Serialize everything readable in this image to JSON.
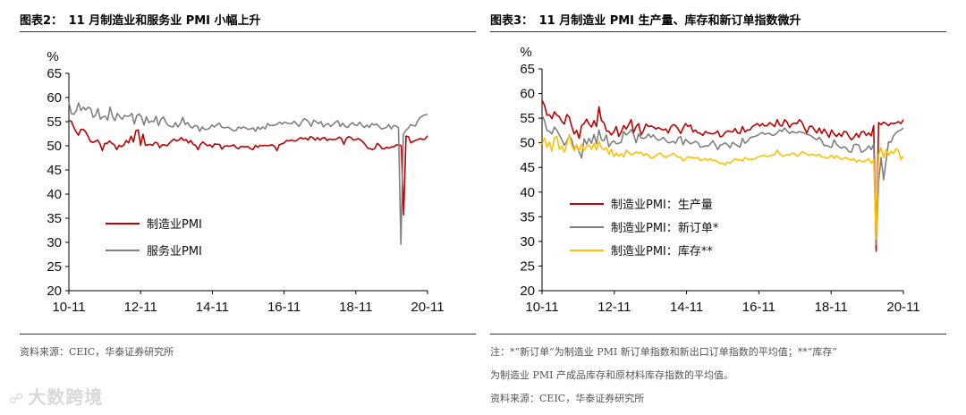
{
  "left": {
    "title_label": "图表2：",
    "title_text": "11 月制造业和服务业 PMI 小幅上升",
    "source": "资料来源：CEIC，华泰证券研究所"
  },
  "right": {
    "title_label": "图表3：",
    "title_text": "11 月制造业 PMI 生产量、库存和新订单指数微升",
    "note_line1": "注：*“新订单”为制造业 PMI 新订单指数和新出口订单指数的平均值；**“库存”",
    "note_line2": "为制造业 PMI 产成品库存和原材料库存指数的平均值。",
    "source": "资料来源：CEIC，华泰证券研究所"
  },
  "watermark": {
    "text": "大数跨境",
    "icon": "watermark-logo-icon"
  },
  "colors": {
    "red": "#c00000",
    "gray": "#808080",
    "yellow": "#ffc000",
    "rule": "#c00000"
  },
  "chart_data": [
    {
      "type": "line",
      "title": "11 月制造业和服务业 PMI 小幅上升",
      "ylabel": "%",
      "ylim": [
        20,
        65
      ],
      "yticks": [
        "20",
        "25",
        "30",
        "35",
        "40",
        "45",
        "50",
        "55",
        "60",
        "65"
      ],
      "xticks": [
        "10-11",
        "12-11",
        "14-11",
        "16-11",
        "18-11",
        "20-11"
      ],
      "x_start": "2010-11",
      "x_end": "2020-11",
      "series": [
        {
          "name": "制造业PMI",
          "color": "#c00000",
          "values": [
            55.2,
            55.1,
            53.9,
            52.9,
            52.2,
            53.4,
            53.4,
            52.9,
            52.0,
            50.9,
            50.7,
            50.9,
            51.2,
            50.4,
            49.0,
            50.5,
            50.5,
            51.0,
            50.5,
            50.2,
            49.2,
            50.1,
            49.8,
            50.2,
            51.1,
            50.6,
            52.0,
            50.8,
            53.1,
            53.3,
            50.1,
            52.4,
            50.1,
            50.2,
            50.3,
            50.1,
            50.7,
            50.6,
            49.6,
            50.2,
            50.2,
            50.0,
            50.5,
            51.0,
            51.4,
            51.0,
            51.2,
            51.7,
            51.1,
            51.3,
            50.6,
            51.1,
            50.3,
            50.1,
            49.2,
            50.3,
            50.8,
            50.4,
            50.0,
            50.2,
            49.7,
            50.4,
            50.3,
            50.3,
            49.3,
            49.9,
            50.0,
            49.9,
            50.0,
            50.2,
            49.6,
            49.4,
            49.9,
            49.8,
            49.8,
            49.8,
            49.4,
            49.2,
            50.1,
            49.7,
            50.1,
            50.0,
            50.1,
            50.0,
            50.1,
            50.2,
            49.9,
            49.0,
            50.2,
            50.4,
            50.6,
            51.1,
            51.0,
            51.2,
            51.0,
            51.0,
            51.4,
            51.7,
            51.4,
            51.6,
            51.2,
            51.9,
            51.7,
            51.2,
            51.7,
            51.2,
            51.6,
            51.7,
            51.1,
            51.4,
            51.3,
            51.3,
            51.4,
            51.8,
            51.5,
            50.3,
            51.5,
            51.9,
            51.7,
            51.2,
            51.3,
            51.5,
            51.2,
            50.8,
            50.2,
            49.5,
            49.4,
            49.2,
            49.5,
            50.5,
            50.1,
            49.4,
            49.4,
            49.7,
            49.5,
            49.8,
            49.8,
            50.2,
            50.2,
            50.0,
            35.7,
            52.0,
            51.9,
            50.6,
            50.9,
            51.1,
            51.3,
            51.5,
            51.3,
            51.4,
            52.1
          ]
        },
        {
          "name": "服务业PMI",
          "color": "#808080",
          "values": [
            59.1,
            56.7,
            56.5,
            57.2,
            58.9,
            57.3,
            58.0,
            57.4,
            58.0,
            57.7,
            55.9,
            56.3,
            57.7,
            55.5,
            56.0,
            56.1,
            55.3,
            58.0,
            56.1,
            55.2,
            56.7,
            56.0,
            55.5,
            56.3,
            56.1,
            56.2,
            56.7,
            54.5,
            56.2,
            56.6,
            55.9,
            54.3,
            56.0,
            54.8,
            55.1,
            55.0,
            56.1,
            54.2,
            55.5,
            56.0,
            54.9,
            54.2,
            54.0,
            53.9,
            54.8,
            53.9,
            54.6,
            55.9,
            54.4,
            54.8,
            54.0,
            53.7,
            54.2,
            54.1,
            53.0,
            53.9,
            53.4,
            53.4,
            53.6,
            54.3,
            53.9,
            54.3,
            54.7,
            53.9,
            53.7,
            53.8,
            53.8,
            53.4,
            53.1,
            53.2,
            53.9,
            53.6,
            53.9,
            53.7,
            53.4,
            53.5,
            53.7,
            53.0,
            53.9,
            53.4,
            53.9,
            53.5,
            54.6,
            54.2,
            54.2,
            54.3,
            54.5,
            54.9,
            54.5,
            54.9,
            54.7,
            54.6,
            54.6,
            55.1,
            54.5,
            54.0,
            54.9,
            55.6,
            55.4,
            54.9,
            54.0,
            55.3,
            55.0,
            54.6,
            55.0,
            53.9,
            54.4,
            54.6,
            54.0,
            54.4,
            54.9,
            55.2,
            54.0,
            54.7,
            54.0,
            53.8,
            54.4,
            54.8,
            54.3,
            54.2,
            54.9,
            54.2,
            53.8,
            54.3,
            53.8,
            54.6,
            54.3,
            54.5,
            54.0,
            53.5,
            53.6,
            53.8,
            54.4,
            53.5,
            54.2,
            54.1,
            53.7,
            29.6,
            52.3,
            53.2,
            53.6,
            54.4,
            54.2,
            54.1,
            55.2,
            55.9,
            56.2,
            56.4,
            56.5
          ]
        }
      ]
    },
    {
      "type": "line",
      "title": "11 月制造业 PMI 生产量、库存和新订单指数微升",
      "ylabel": "%",
      "ylim": [
        20,
        65
      ],
      "yticks": [
        "20",
        "25",
        "30",
        "35",
        "40",
        "45",
        "50",
        "55",
        "60",
        "65"
      ],
      "xticks": [
        "10-11",
        "12-11",
        "14-11",
        "16-11",
        "18-11",
        "20-11"
      ],
      "x_start": "2010-11",
      "x_end": "2020-11",
      "series": [
        {
          "name": "制造业PMI：生产量",
          "color": "#c00000",
          "values": [
            58.6,
            57.6,
            55.6,
            55.7,
            54.9,
            56.3,
            55.6,
            55.3,
            54.3,
            53.8,
            55.7,
            55.2,
            53.3,
            51.8,
            52.5,
            50.9,
            53.5,
            53.9,
            54.8,
            53.8,
            53.2,
            54.5,
            53.3,
            57.3,
            54.5,
            54.1,
            52.4,
            52.3,
            51.6,
            52.2,
            53.3,
            51.3,
            52.2,
            53.5,
            52.8,
            53.7,
            54.7,
            52.1,
            53.3,
            53.9,
            51.6,
            52.5,
            53.8,
            53.3,
            53.4,
            53.2,
            52.8,
            53.1,
            52.8,
            52.6,
            52.8,
            52.0,
            53.2,
            53.7,
            53.5,
            52.8,
            51.9,
            53.0,
            53.9,
            53.3,
            53.6,
            52.2,
            52.6,
            52.0,
            51.9,
            51.5,
            52.3,
            52.0,
            51.9,
            51.8,
            52.0,
            52.4,
            51.2,
            51.4,
            52.1,
            52.4,
            52.3,
            52.2,
            52.9,
            52.0,
            51.9,
            53.3,
            52.2,
            52.6,
            52.6,
            53.3,
            53.6,
            53.9,
            53.4,
            53.9,
            53.4,
            53.5,
            54.1,
            53.7,
            53.3,
            54.7,
            53.6,
            53.4,
            54.7,
            54.2,
            53.1,
            53.8,
            54.0,
            53.9,
            54.7,
            54.2,
            53.0,
            52.0,
            53.3,
            53.4,
            52.7,
            52.0,
            53.0,
            51.9,
            52.8,
            52.0,
            51.1,
            52.6,
            51.8,
            51.3,
            51.9,
            51.3,
            52.3,
            52.2,
            51.3,
            50.6,
            51.1,
            51.9,
            51.1,
            52.2,
            52.3,
            51.5,
            52.0,
            51.4,
            53.5,
            28.0,
            54.1,
            53.7,
            54.2,
            53.9,
            53.5,
            54.0,
            53.9,
            54.0,
            54.3,
            53.9,
            54.7
          ]
        },
        {
          "name": "制造业PMI：新订单*",
          "color": "#808080",
          "values": [
            55.6,
            54.5,
            52.5,
            52.3,
            51.8,
            53.2,
            52.5,
            51.6,
            50.6,
            49.5,
            50.3,
            51.4,
            50.6,
            48.6,
            49.5,
            48.2,
            46.9,
            50.8,
            49.7,
            50.9,
            49.9,
            51.7,
            49.8,
            52.6,
            50.6,
            50.4,
            51.6,
            49.2,
            50.0,
            50.4,
            49.8,
            49.9,
            50.1,
            52.3,
            51.6,
            52.0,
            52.7,
            51.7,
            50.0,
            51.8,
            51.0,
            50.9,
            51.1,
            51.8,
            51.1,
            51.6,
            50.9,
            50.5,
            50.7,
            51.1,
            50.5,
            50.0,
            50.1,
            50.3,
            49.9,
            51.0,
            51.3,
            49.6,
            50.7,
            50.2,
            49.8,
            50.0,
            50.3,
            50.0,
            49.1,
            49.2,
            49.4,
            49.3,
            49.8,
            50.4,
            49.6,
            48.6,
            49.5,
            49.7,
            50.0,
            49.6,
            49.0,
            50.1,
            49.7,
            49.4,
            49.1,
            50.9,
            49.9,
            50.3,
            51.0,
            51.2,
            51.3,
            51.5,
            51.8,
            52.1,
            51.7,
            51.9,
            51.9,
            51.5,
            51.6,
            52.0,
            52.6,
            52.3,
            53.0,
            52.4,
            51.9,
            52.3,
            52.1,
            52.0,
            52.3,
            52.1,
            52.0,
            51.7,
            51.6,
            51.3,
            50.9,
            50.6,
            51.1,
            50.4,
            49.4,
            49.5,
            49.2,
            49.1,
            50.6,
            49.7,
            49.2,
            48.9,
            49.2,
            48.9,
            48.2,
            48.1,
            49.6,
            49.7,
            49.5,
            48.1,
            48.3,
            48.7,
            49.4,
            48.6,
            49.8,
            29.3,
            42.2,
            47.0,
            42.5,
            46.3,
            50.2,
            50.1,
            51.4,
            52.0,
            52.4,
            52.6,
            53.0
          ]
        },
        {
          "name": "制造业PMI：库存**",
          "color": "#ffc000",
          "values": [
            49.7,
            51.0,
            49.1,
            50.1,
            48.3,
            51.0,
            51.3,
            48.7,
            49.3,
            48.1,
            49.7,
            51.7,
            49.5,
            48.4,
            49.6,
            48.4,
            49.7,
            48.4,
            49.3,
            49.5,
            48.7,
            49.9,
            48.5,
            50.3,
            49.0,
            48.6,
            49.0,
            47.7,
            48.7,
            47.2,
            47.9,
            47.3,
            47.8,
            47.1,
            48.5,
            48.0,
            47.6,
            47.8,
            48.1,
            47.9,
            48.1,
            47.4,
            47.8,
            47.5,
            46.9,
            47.0,
            47.4,
            47.8,
            47.9,
            47.3,
            47.0,
            47.4,
            47.5,
            47.9,
            47.5,
            47.1,
            47.1,
            46.3,
            46.7,
            47.2,
            47.0,
            47.0,
            46.9,
            47.0,
            46.4,
            46.6,
            46.8,
            46.4,
            46.8,
            46.3,
            46.5,
            46.1,
            45.8,
            45.9,
            45.5,
            46.1,
            45.9,
            46.3,
            46.8,
            46.5,
            46.6,
            46.3,
            47.0,
            46.7,
            46.6,
            46.7,
            46.7,
            47.1,
            47.2,
            47.4,
            47.5,
            47.1,
            47.4,
            47.5,
            47.6,
            48.5,
            47.8,
            47.3,
            47.4,
            47.6,
            47.5,
            47.9,
            47.8,
            47.3,
            47.6,
            48.2,
            48.0,
            47.7,
            47.4,
            47.7,
            47.5,
            47.4,
            47.7,
            47.1,
            47.1,
            46.9,
            47.1,
            47.5,
            46.8,
            47.4,
            47.0,
            46.6,
            46.9,
            47.0,
            46.6,
            46.5,
            46.8,
            46.1,
            46.5,
            46.3,
            46.2,
            46.4,
            46.8,
            45.9,
            46.5,
            30.5,
            47.7,
            49.0,
            47.0,
            48.6,
            47.5,
            48.3,
            47.8,
            48.8,
            48.4,
            46.6,
            47.3
          ]
        }
      ]
    }
  ]
}
